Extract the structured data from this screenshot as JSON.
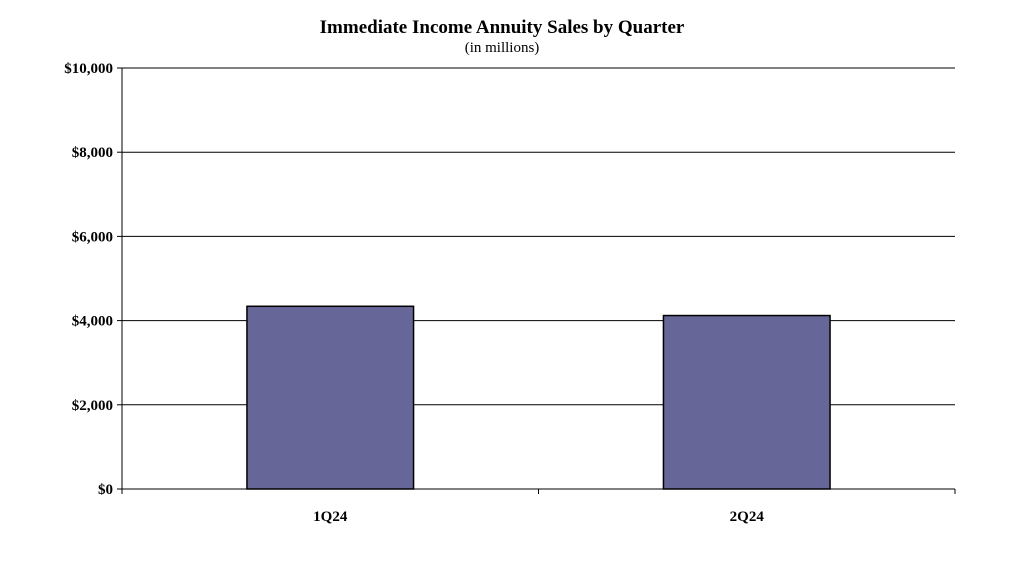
{
  "chart_data": {
    "type": "bar",
    "title": "Immediate Income Annuity Sales by Quarter",
    "subtitle": "(in millions)",
    "categories": [
      "1Q24",
      "2Q24"
    ],
    "values": [
      4340,
      4120
    ],
    "ylim": [
      0,
      10000
    ],
    "yticks": [
      0,
      2000,
      4000,
      6000,
      8000,
      10000
    ],
    "ytick_labels": [
      "$0",
      "$2,000",
      "$4,000",
      "$6,000",
      "$8,000",
      "$10,000"
    ],
    "grid": true,
    "legend": "none",
    "bar_color": "#666699",
    "bar_edge_color": "#000000"
  }
}
